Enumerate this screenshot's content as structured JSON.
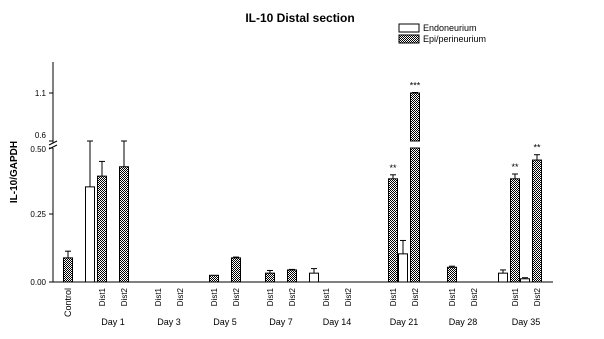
{
  "chart_data": {
    "type": "bar",
    "title": "IL-10 Distal section",
    "ylabel": "IL-10/GAPDH",
    "xlabel": "",
    "y_axis": {
      "broken": true,
      "lower_range": [
        0,
        0.5
      ],
      "upper_range": [
        0.6,
        1.1
      ],
      "tick_labels": [
        "0.00",
        "0.25",
        "0.50",
        "0.6",
        "1.1"
      ]
    },
    "legend": {
      "placement": "top-right",
      "entries": [
        {
          "name": "Endoneurium",
          "pattern": "white"
        },
        {
          "name": "Epi/perineurium",
          "pattern": "checkered"
        }
      ]
    },
    "series_names": [
      "Endoneurium",
      "Epi/perineurium"
    ],
    "bars": [
      {
        "group": "Control",
        "sub": "",
        "series": "Epi/perineurium",
        "value": 0.09,
        "error": 0.025,
        "sig": ""
      },
      {
        "group": "Day 1",
        "sub": "Dist1",
        "series": "Endoneurium",
        "value": 0.355,
        "error": 0.165,
        "sig": ""
      },
      {
        "group": "Day 1",
        "sub": "Dist1",
        "series": "Epi/perineurium",
        "value": 0.395,
        "error": 0.055,
        "sig": ""
      },
      {
        "group": "Day 1",
        "sub": "Dist2",
        "series": "Epi/perineurium",
        "value": 0.43,
        "error": 0.085,
        "sig": ""
      },
      {
        "group": "Day 3",
        "sub": "Dist1",
        "series": "Epi/perineurium",
        "value": 0,
        "error": 0,
        "sig": ""
      },
      {
        "group": "Day 3",
        "sub": "Dist2",
        "series": "Epi/perineurium",
        "value": 0,
        "error": 0,
        "sig": ""
      },
      {
        "group": "Day 5",
        "sub": "Dist1",
        "series": "Epi/perineurium",
        "value": 0.025,
        "error": 0,
        "sig": ""
      },
      {
        "group": "Day 5",
        "sub": "Dist2",
        "series": "Epi/perineurium",
        "value": 0.09,
        "error": 0.003,
        "sig": ""
      },
      {
        "group": "Day 7",
        "sub": "Dist1",
        "series": "Epi/perineurium",
        "value": 0.033,
        "error": 0.01,
        "sig": ""
      },
      {
        "group": "Day 7",
        "sub": "Dist2",
        "series": "Epi/perineurium",
        "value": 0.045,
        "error": 0.002,
        "sig": ""
      },
      {
        "group": "Day 14",
        "sub": "Dist1",
        "series": "Endoneurium",
        "value": 0.033,
        "error": 0.017,
        "sig": ""
      },
      {
        "group": "Day 14",
        "sub": "Dist2",
        "series": "Epi/perineurium",
        "value": 0,
        "error": 0,
        "sig": ""
      },
      {
        "group": "Day 21",
        "sub": "Dist1",
        "series": "Epi/perineurium",
        "value": 0.385,
        "error": 0.015,
        "sig": "**"
      },
      {
        "group": "Day 21",
        "sub": "Dist2",
        "series": "Endoneurium",
        "value": 0.105,
        "error": 0.05,
        "sig": ""
      },
      {
        "group": "Day 21",
        "sub": "Dist2",
        "series": "Epi/perineurium",
        "value": 1.1,
        "error": 0.005,
        "sig": "***"
      },
      {
        "group": "Day 28",
        "sub": "Dist1",
        "series": "Epi/perineurium",
        "value": 0.055,
        "error": 0.004,
        "sig": ""
      },
      {
        "group": "Day 28",
        "sub": "Dist2",
        "series": "Epi/perineurium",
        "value": 0,
        "error": 0,
        "sig": ""
      },
      {
        "group": "Day 35",
        "sub": "Dist1",
        "series": "Endoneurium",
        "value": 0.033,
        "error": 0.012,
        "sig": ""
      },
      {
        "group": "Day 35",
        "sub": "Dist1",
        "series": "Epi/perineurium",
        "value": 0.385,
        "error": 0.018,
        "sig": "**"
      },
      {
        "group": "Day 35",
        "sub": "Dist2",
        "series": "Endoneurium",
        "value": 0.012,
        "error": 0.004,
        "sig": ""
      },
      {
        "group": "Day 35",
        "sub": "Dist2",
        "series": "Epi/perineurium",
        "value": 0.455,
        "error": 0.02,
        "sig": "**"
      }
    ],
    "groups": [
      {
        "label": "Control",
        "subs": []
      },
      {
        "label": "Day 1",
        "subs": [
          "Dist1",
          "Dist2"
        ]
      },
      {
        "label": "Day 3",
        "subs": [
          "Dist1",
          "Dist2"
        ]
      },
      {
        "label": "Day 5",
        "subs": [
          "Dist1",
          "Dist2"
        ]
      },
      {
        "label": "Day 7",
        "subs": [
          "Dist1",
          "Dist2"
        ]
      },
      {
        "label": "Day 14",
        "subs": [
          "Dist1",
          "Dist2"
        ]
      },
      {
        "label": "Day 21",
        "subs": [
          "Dist1",
          "Dist2"
        ]
      },
      {
        "label": "Day 28",
        "subs": [
          "Dist1",
          "Dist2"
        ]
      },
      {
        "label": "Day 35",
        "subs": [
          "Dist1",
          "Dist2"
        ]
      }
    ],
    "grid": false
  }
}
